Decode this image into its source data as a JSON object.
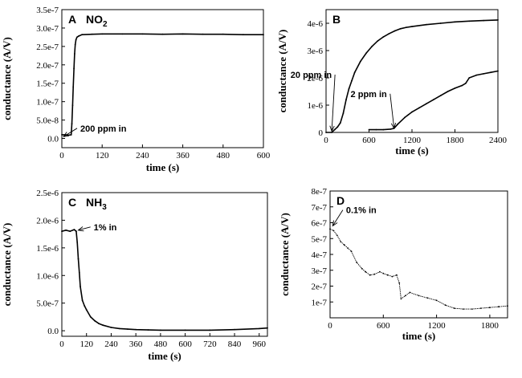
{
  "chart_data": [
    {
      "type": "line",
      "panel": "A",
      "gas": "NO",
      "gas_subscript": "2",
      "xlabel": "time (s)",
      "ylabel": "conductance (A/V)",
      "xlim": [
        0,
        600
      ],
      "ylim": [
        -2.5e-08,
        3.5e-07
      ],
      "xticks": [
        0,
        120,
        240,
        360,
        480,
        600
      ],
      "xticklabels": [
        "0",
        "120",
        "240",
        "360",
        "480",
        "600"
      ],
      "yticks": [
        0,
        5e-08,
        1e-07,
        1.5e-07,
        2e-07,
        2.5e-07,
        3e-07,
        3.5e-07
      ],
      "yticklabels": [
        "0.0",
        "5.0e-8",
        "1.0e-7",
        "1.5e-7",
        "2.0e-7",
        "2.5e-7",
        "3.0e-7",
        "3.5e-7"
      ],
      "annotations": [
        {
          "text": "200 ppm in",
          "x": 5,
          "y": 5e-09,
          "tx": 55,
          "ty": 1.9e-08
        }
      ],
      "series": [
        {
          "x": [
            0,
            10,
            20,
            28,
            30,
            32,
            34,
            36,
            38,
            40,
            42,
            45,
            50,
            60,
            90,
            120,
            180,
            240,
            300,
            360,
            420,
            480,
            540,
            600
          ],
          "y": [
            1e-08,
            1e-08,
            9e-09,
            1e-08,
            4e-08,
            9e-08,
            1.4e-07,
            1.9e-07,
            2.3e-07,
            2.55e-07,
            2.68e-07,
            2.75e-07,
            2.78e-07,
            2.82e-07,
            2.83e-07,
            2.84e-07,
            2.84e-07,
            2.84e-07,
            2.83e-07,
            2.84e-07,
            2.83e-07,
            2.83e-07,
            2.82e-07,
            2.82e-07
          ]
        }
      ]
    },
    {
      "type": "line",
      "panel": "B",
      "xlabel": "time (s)",
      "ylabel": "conductance (A/V)",
      "xlim": [
        0,
        2400
      ],
      "ylim": [
        0,
        4.5e-06
      ],
      "xticks": [
        0,
        600,
        1200,
        1800,
        2400
      ],
      "xticklabels": [
        "0",
        "600",
        "1200",
        "1800",
        "2400"
      ],
      "yticks": [
        0,
        1e-06,
        2e-06,
        3e-06,
        4e-06
      ],
      "yticklabels": [
        "0",
        "1e-6",
        "2e-6",
        "3e-6",
        "4e-6"
      ],
      "annotations": [
        {
          "text": "20 ppm in",
          "x": 80,
          "y": 5e-08,
          "tx": 80,
          "ty": 2e-06
        },
        {
          "text": "2 ppm in",
          "x": 950,
          "y": 1.5e-07,
          "tx": 850,
          "ty": 1.3e-06
        }
      ],
      "series": [
        {
          "name": "20 ppm in",
          "x": [
            0,
            80,
            120,
            160,
            200,
            240,
            280,
            320,
            360,
            400,
            480,
            560,
            640,
            720,
            800,
            880,
            960,
            1040,
            1120,
            1200,
            1400,
            1600,
            1800,
            2000,
            2200,
            2400
          ],
          "y": [
            0,
            0,
            1e-07,
            2e-07,
            3.5e-07,
            7e-07,
            1.2e-06,
            1.6e-06,
            1.9e-06,
            2.2e-06,
            2.6e-06,
            2.9e-06,
            3.15e-06,
            3.35e-06,
            3.5e-06,
            3.62e-06,
            3.72e-06,
            3.8e-06,
            3.85e-06,
            3.88e-06,
            3.95e-06,
            4e-06,
            4.05e-06,
            4.08e-06,
            4.1e-06,
            4.12e-06
          ]
        },
        {
          "name": "2 ppm in",
          "x": [
            600,
            700,
            800,
            900,
            950,
            1000,
            1100,
            1200,
            1300,
            1400,
            1500,
            1600,
            1700,
            1800,
            1900,
            1950,
            2000,
            2100,
            2200,
            2300,
            2400
          ],
          "y": [
            1e-07,
            1e-07,
            1e-07,
            1.2e-07,
            1.5e-07,
            3e-07,
            5.5e-07,
            7.5e-07,
            9e-07,
            1.05e-06,
            1.2e-06,
            1.35e-06,
            1.5e-06,
            1.62e-06,
            1.72e-06,
            1.8e-06,
            2e-06,
            2.1e-06,
            2.15e-06,
            2.2e-06,
            2.25e-06
          ]
        }
      ]
    },
    {
      "type": "line",
      "panel": "C",
      "gas": "NH",
      "gas_subscript": "3",
      "xlabel": "time (s)",
      "ylabel": "conductance (A/V)",
      "xlim": [
        0,
        1000
      ],
      "ylim": [
        -1e-07,
        2.5e-06
      ],
      "xticks": [
        0,
        120,
        240,
        360,
        480,
        600,
        720,
        840,
        960
      ],
      "xticklabels": [
        "0",
        "120",
        "240",
        "360",
        "480",
        "600",
        "720",
        "840",
        "960"
      ],
      "yticks": [
        0,
        5e-07,
        1e-06,
        1.5e-06,
        2e-06,
        2.5e-06
      ],
      "yticklabels": [
        "0.0",
        "5.0e-7",
        "1.0e-6",
        "1.5e-6",
        "2.0e-6",
        "2.5e-6"
      ],
      "annotations": [
        {
          "text": "1% in",
          "x": 80,
          "y": 1.82e-06,
          "tx": 155,
          "ty": 1.82e-06
        }
      ],
      "series": [
        {
          "x": [
            0,
            20,
            40,
            60,
            70,
            75,
            80,
            85,
            90,
            100,
            110,
            120,
            140,
            160,
            180,
            200,
            240,
            280,
            320,
            360,
            420,
            480,
            600,
            720,
            840,
            960,
            1000
          ],
          "y": [
            1.8e-06,
            1.82e-06,
            1.8e-06,
            1.83e-06,
            1.8e-06,
            1.6e-06,
            1.3e-06,
            1.05e-06,
            8e-07,
            5.5e-07,
            4.5e-07,
            3.8e-07,
            2.5e-07,
            1.8e-07,
            1.3e-07,
            1e-07,
            6e-08,
            4e-08,
            3e-08,
            2e-08,
            1.5e-08,
            1e-08,
            1e-08,
            1e-08,
            2e-08,
            4e-08,
            5e-08
          ]
        }
      ]
    },
    {
      "type": "line",
      "panel": "D",
      "xlabel": "time (s)",
      "ylabel": "conductance (A/V)",
      "xlim": [
        0,
        2000
      ],
      "ylim": [
        0,
        8e-07
      ],
      "xticks": [
        0,
        600,
        1200,
        1800
      ],
      "xticklabels": [
        "0",
        "600",
        "1200",
        "1800"
      ],
      "yticks": [
        1e-07,
        2e-07,
        3e-07,
        4e-07,
        5e-07,
        6e-07,
        7e-07,
        8e-07
      ],
      "yticklabels": [
        "1e-7",
        "2e-7",
        "3e-7",
        "4e-7",
        "5e-7",
        "6e-7",
        "7e-7",
        "8e-7"
      ],
      "annotations": [
        {
          "text": "0.1% in",
          "x": 30,
          "y": 5.8e-07,
          "tx": 180,
          "ty": 6.6e-07
        }
      ],
      "series": [
        {
          "x": [
            0,
            40,
            80,
            120,
            160,
            200,
            240,
            300,
            360,
            400,
            450,
            500,
            560,
            600,
            650,
            700,
            750,
            780,
            800,
            850,
            900,
            1000,
            1100,
            1200,
            1300,
            1400,
            1500,
            1600,
            1700,
            1800,
            1900,
            2000
          ],
          "y": [
            5.6e-07,
            5.5e-07,
            5.2e-07,
            4.8e-07,
            4.6e-07,
            4.4e-07,
            4.2e-07,
            3.5e-07,
            3.1e-07,
            2.9e-07,
            2.7e-07,
            2.75e-07,
            2.9e-07,
            2.8e-07,
            2.7e-07,
            2.6e-07,
            2.7e-07,
            2.2e-07,
            1.2e-07,
            1.4e-07,
            1.6e-07,
            1.4e-07,
            1.25e-07,
            1.1e-07,
            8e-08,
            6e-08,
            5.5e-08,
            5.5e-08,
            6e-08,
            6.5e-08,
            7e-08,
            7.5e-08
          ]
        }
      ]
    }
  ]
}
